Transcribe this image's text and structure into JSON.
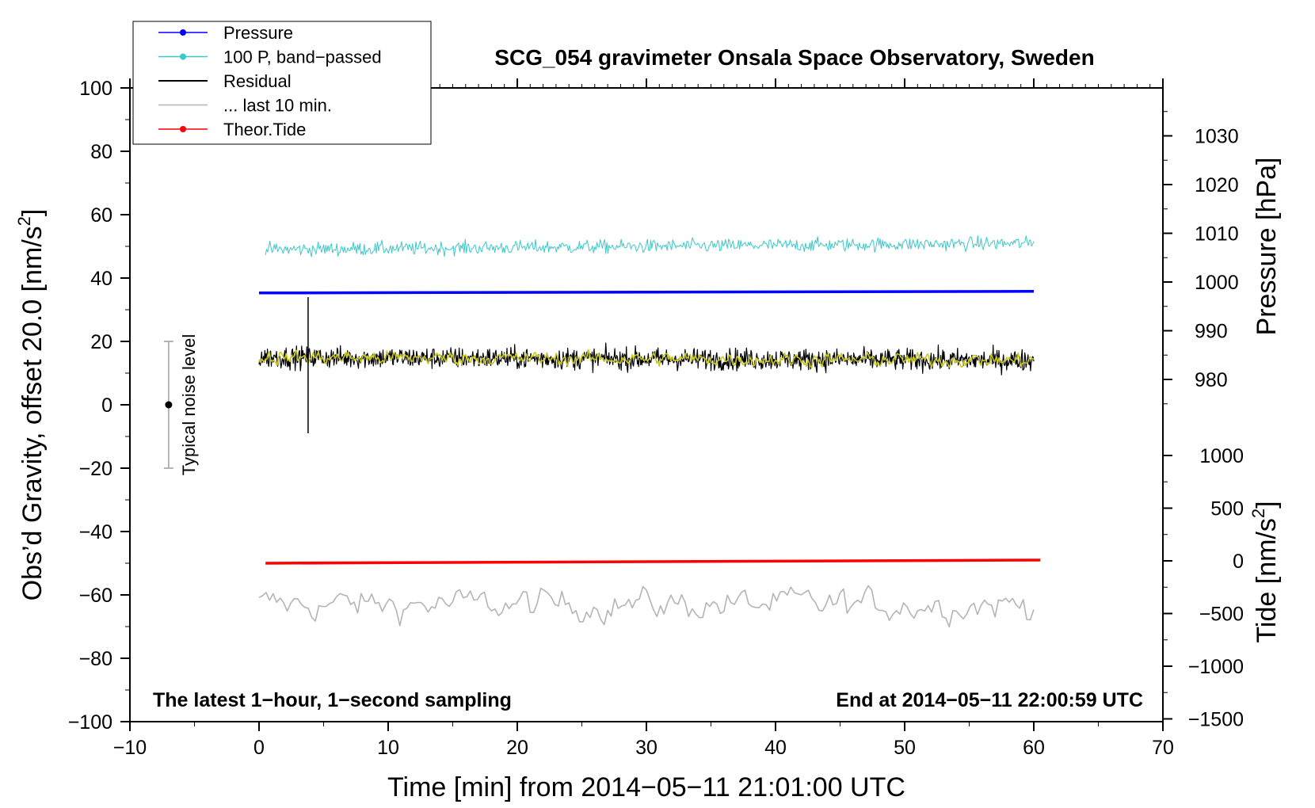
{
  "chart_data": {
    "type": "line",
    "title": "SCG_054 gravimeter Onsala Space Observatory, Sweden",
    "xlabel": "Time [min] from 2014−05−11 21:01:00 UTC",
    "ylabel_left": "Obs’d Gravity, offset 20.0 [nm/s",
    "ylabel_left_sup": "2",
    "ylabel_left_end": "]",
    "ylabel_right_top": "Pressure [hPa]",
    "ylabel_right_bottom": "Tide [nm/s",
    "ylabel_right_bottom_sup": "2",
    "ylabel_right_bottom_end": "]",
    "xlim": [
      -10,
      70
    ],
    "ylim": [
      -100,
      100
    ],
    "pressure_axis_range": [
      975,
      1035
    ],
    "tide_axis_range": [
      -1500,
      1000
    ],
    "x_ticks": [
      "−10",
      "0",
      "10",
      "20",
      "30",
      "40",
      "50",
      "60",
      "70"
    ],
    "x_tick_values": [
      -10,
      0,
      10,
      20,
      30,
      40,
      50,
      60,
      70
    ],
    "y_ticks": [
      "−100",
      "−80",
      "−60",
      "−40",
      "−20",
      "0",
      "20",
      "40",
      "60",
      "80",
      "100"
    ],
    "y_tick_values": [
      -100,
      -80,
      -60,
      -40,
      -20,
      0,
      20,
      40,
      60,
      80,
      100
    ],
    "pressure_ticks": [
      "980",
      "990",
      "1000",
      "1010",
      "1020",
      "1030"
    ],
    "pressure_tick_values": [
      980,
      990,
      1000,
      1010,
      1020,
      1030
    ],
    "tide_ticks": [
      "−1500",
      "−1000",
      "−500",
      "0",
      "500",
      "1000"
    ],
    "tide_tick_values": [
      -1500,
      -1000,
      -500,
      0,
      500,
      1000
    ],
    "legend": [
      {
        "label": "Pressure",
        "color": "#0000ff",
        "marker": true
      },
      {
        "label": "100 P, band−passed",
        "color": "#3cc8c8",
        "marker": true
      },
      {
        "label": "Residual",
        "color": "#000000",
        "marker": false
      },
      {
        "label": "... last 10 min.",
        "color": "#b4b4b4",
        "marker": false
      },
      {
        "label": "Theor.Tide",
        "color": "#ff0000",
        "marker": true
      }
    ],
    "corner_left": "The latest 1−hour, 1−second sampling",
    "corner_right": "End at 2014−05−11 22:00:59 UTC",
    "noise_label": "Typical noise level",
    "noise_bar": {
      "center": 0,
      "low": -20,
      "high": 20,
      "x": -7
    },
    "series": [
      {
        "name": "Pressure",
        "color": "#0000ff",
        "x_start": 0,
        "x_end": 60,
        "y_start": 35.3,
        "y_end": 35.8
      },
      {
        "name": "100 P, band-passed",
        "color": "#3cc8c8",
        "x_start": 0.5,
        "x_end": 60,
        "y_center": 49,
        "y_center_end": 51,
        "amplitude": 2.2
      },
      {
        "name": "Residual",
        "color": "#000000",
        "x_start": 0,
        "x_end": 60,
        "y_center": 15,
        "y_center_end": 14,
        "amplitude": 3.5,
        "spike": {
          "x": 3.8,
          "y_min": -9,
          "y_max": 34
        }
      },
      {
        "name": "Residual smoothed",
        "color": "#c8c81e",
        "x_start": 0,
        "x_end": 60,
        "y_center": 15,
        "y_center_end": 14,
        "amplitude": 1.6
      },
      {
        "name": "... last 10 min.",
        "color": "#b4b4b4",
        "x_start": 0,
        "x_end": 60,
        "y_center": -63,
        "amplitude": 4.5
      },
      {
        "name": "Theor.Tide",
        "color": "#ff0000",
        "x_start": 0.5,
        "x_end": 60.5,
        "y_start": -50,
        "y_end": -49
      }
    ]
  }
}
